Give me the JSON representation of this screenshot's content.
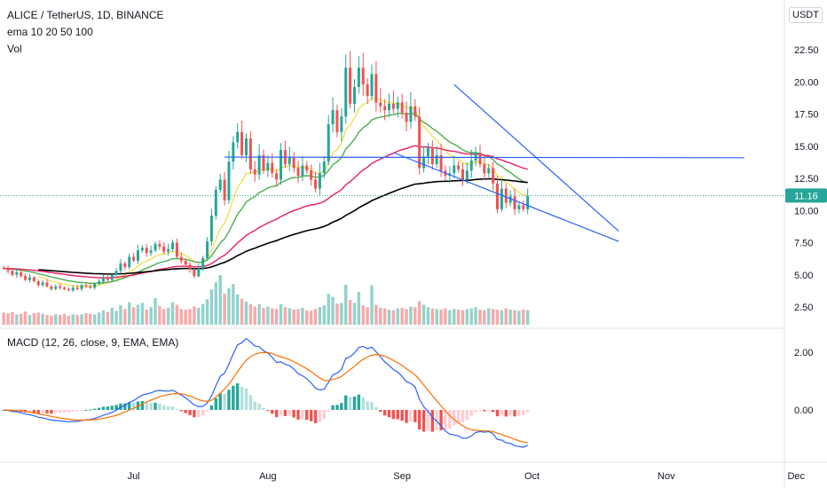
{
  "header": {
    "title": "ALICE / TetherUS, 1D, BINANCE",
    "indicator_ema": "ema 10 20 50 100",
    "indicator_vol": "Vol",
    "indicator_macd": "MACD (12, 26, close, 9, EMA, EMA)",
    "currency": "USDT"
  },
  "colors": {
    "up": "#26a69a",
    "down": "#ef5350",
    "ema10": "#f5e050",
    "ema20": "#4caf50",
    "ema50": "#e91e63",
    "ema100": "#000000",
    "trendline": "#2962ff",
    "macd": "#2962ff",
    "signal": "#ff6d00",
    "last_price": "#26a69a"
  },
  "chart_data": {
    "type": "candlestick",
    "symbol": "ALICE / TetherUS",
    "interval": "1D",
    "exchange": "BINANCE",
    "start_date": "2021-06-01",
    "x_tick_labels": [
      {
        "label": "Jul",
        "day": 30
      },
      {
        "label": "Aug",
        "day": 61
      },
      {
        "label": "Sep",
        "day": 92
      },
      {
        "label": "Oct",
        "day": 122
      },
      {
        "label": "Nov",
        "day": 153
      },
      {
        "label": "Dec",
        "day": 183
      }
    ],
    "price_axis": {
      "ticks": [
        2.5,
        5.0,
        7.5,
        10.0,
        12.5,
        15.0,
        17.5,
        20.0,
        22.5
      ],
      "tick_labels": [
        "2.50",
        "5.00",
        "7.50",
        "10.00",
        "12.50",
        "15.00",
        "17.50",
        "20.00",
        "22.50"
      ]
    },
    "last_price": 11.16,
    "last_price_label": "11.16",
    "closes": [
      5.5,
      5.3,
      5.0,
      5.2,
      4.9,
      4.6,
      4.8,
      4.5,
      4.2,
      4.4,
      4.1,
      3.9,
      4.1,
      4.0,
      3.9,
      3.8,
      4.0,
      3.9,
      4.2,
      4.1,
      4.0,
      4.3,
      4.5,
      4.8,
      4.6,
      5.0,
      5.3,
      5.9,
      5.6,
      6.4,
      6.1,
      6.9,
      7.1,
      6.7,
      6.9,
      7.4,
      7.2,
      6.8,
      7.0,
      7.5,
      6.4,
      6.1,
      5.8,
      5.4,
      4.9,
      5.5,
      6.3,
      7.6,
      9.6,
      11.6,
      12.4,
      10.8,
      13.8,
      15.3,
      16.1,
      14.3,
      15.6,
      13.2,
      12.8,
      14.3,
      13.1,
      13.7,
      12.9,
      12.4,
      14.7,
      13.6,
      14.1,
      13.3,
      12.7,
      13.5,
      13.1,
      12.4,
      11.7,
      12.9,
      13.8,
      16.7,
      17.8,
      16.1,
      17.3,
      21.1,
      18.3,
      19.6,
      21.1,
      19.8,
      18.9,
      20.6,
      18.4,
      18.1,
      17.8,
      18.3,
      17.9,
      18.4,
      17.6,
      16.9,
      18.1,
      17.3,
      13.3,
      14.2,
      14.9,
      13.6,
      14.3,
      13.1,
      12.7,
      12.9,
      13.5,
      13.2,
      12.4,
      13.1,
      13.9,
      14.5,
      13.6,
      12.9,
      13.3,
      12.1,
      10.1,
      11.7,
      10.6,
      11.1,
      10.1,
      10.4,
      10.1,
      11.16
    ],
    "ema_periods": [
      10,
      20,
      50,
      100
    ],
    "volume": {
      "values": [
        2.0,
        1.9,
        2.1,
        1.7,
        1.8,
        2.2,
        1.6,
        1.9,
        2.0,
        1.8,
        1.6,
        1.5,
        1.7,
        1.6,
        1.8,
        1.5,
        1.7,
        1.6,
        1.7,
        1.9,
        1.8,
        1.7,
        2.0,
        2.4,
        2.1,
        2.8,
        2.3,
        3.2,
        2.6,
        3.7,
        2.9,
        3.3,
        3.6,
        2.5,
        2.9,
        4.4,
        3.1,
        2.6,
        2.8,
        3.7,
        3.3,
        2.6,
        2.5,
        2.6,
        3.0,
        2.8,
        3.4,
        4.2,
        5.8,
        7.0,
        8.2,
        5.1,
        6.0,
        6.7,
        5.0,
        4.3,
        3.8,
        3.4,
        3.0,
        3.4,
        2.8,
        3.0,
        2.7,
        2.6,
        3.4,
        2.9,
        2.7,
        2.5,
        2.6,
        2.8,
        2.4,
        2.3,
        2.6,
        2.9,
        3.2,
        5.1,
        4.6,
        3.5,
        3.6,
        6.6,
        4.1,
        3.6,
        5.4,
        3.2,
        2.9,
        6.5,
        3.3,
        2.8,
        2.7,
        2.5,
        2.4,
        2.7,
        2.8,
        2.6,
        3.0,
        2.9,
        3.9,
        3.3,
        2.9,
        2.7,
        2.6,
        2.5,
        2.7,
        2.4,
        2.6,
        2.5,
        2.4,
        2.6,
        2.7,
        2.9,
        2.5,
        2.4,
        2.7,
        2.6,
        2.5,
        2.4,
        2.7,
        2.5,
        2.4,
        2.3,
        2.5,
        2.4
      ],
      "unit": "relative"
    },
    "trendlines": [
      {
        "name": "horizontal-resistance",
        "points": [
          [
            51,
            14.15
          ],
          [
            171,
            14.1
          ]
        ]
      },
      {
        "name": "wedge-upper",
        "points": [
          [
            104,
            19.8
          ],
          [
            142,
            8.4
          ]
        ]
      },
      {
        "name": "wedge-lower",
        "points": [
          [
            90,
            14.5
          ],
          [
            142,
            7.6
          ]
        ]
      }
    ],
    "macd": {
      "params": "12, 26, close, 9, EMA, EMA",
      "ticks": [
        0.0,
        2.0
      ],
      "tick_labels": [
        "0.00",
        "2.00"
      ]
    }
  }
}
